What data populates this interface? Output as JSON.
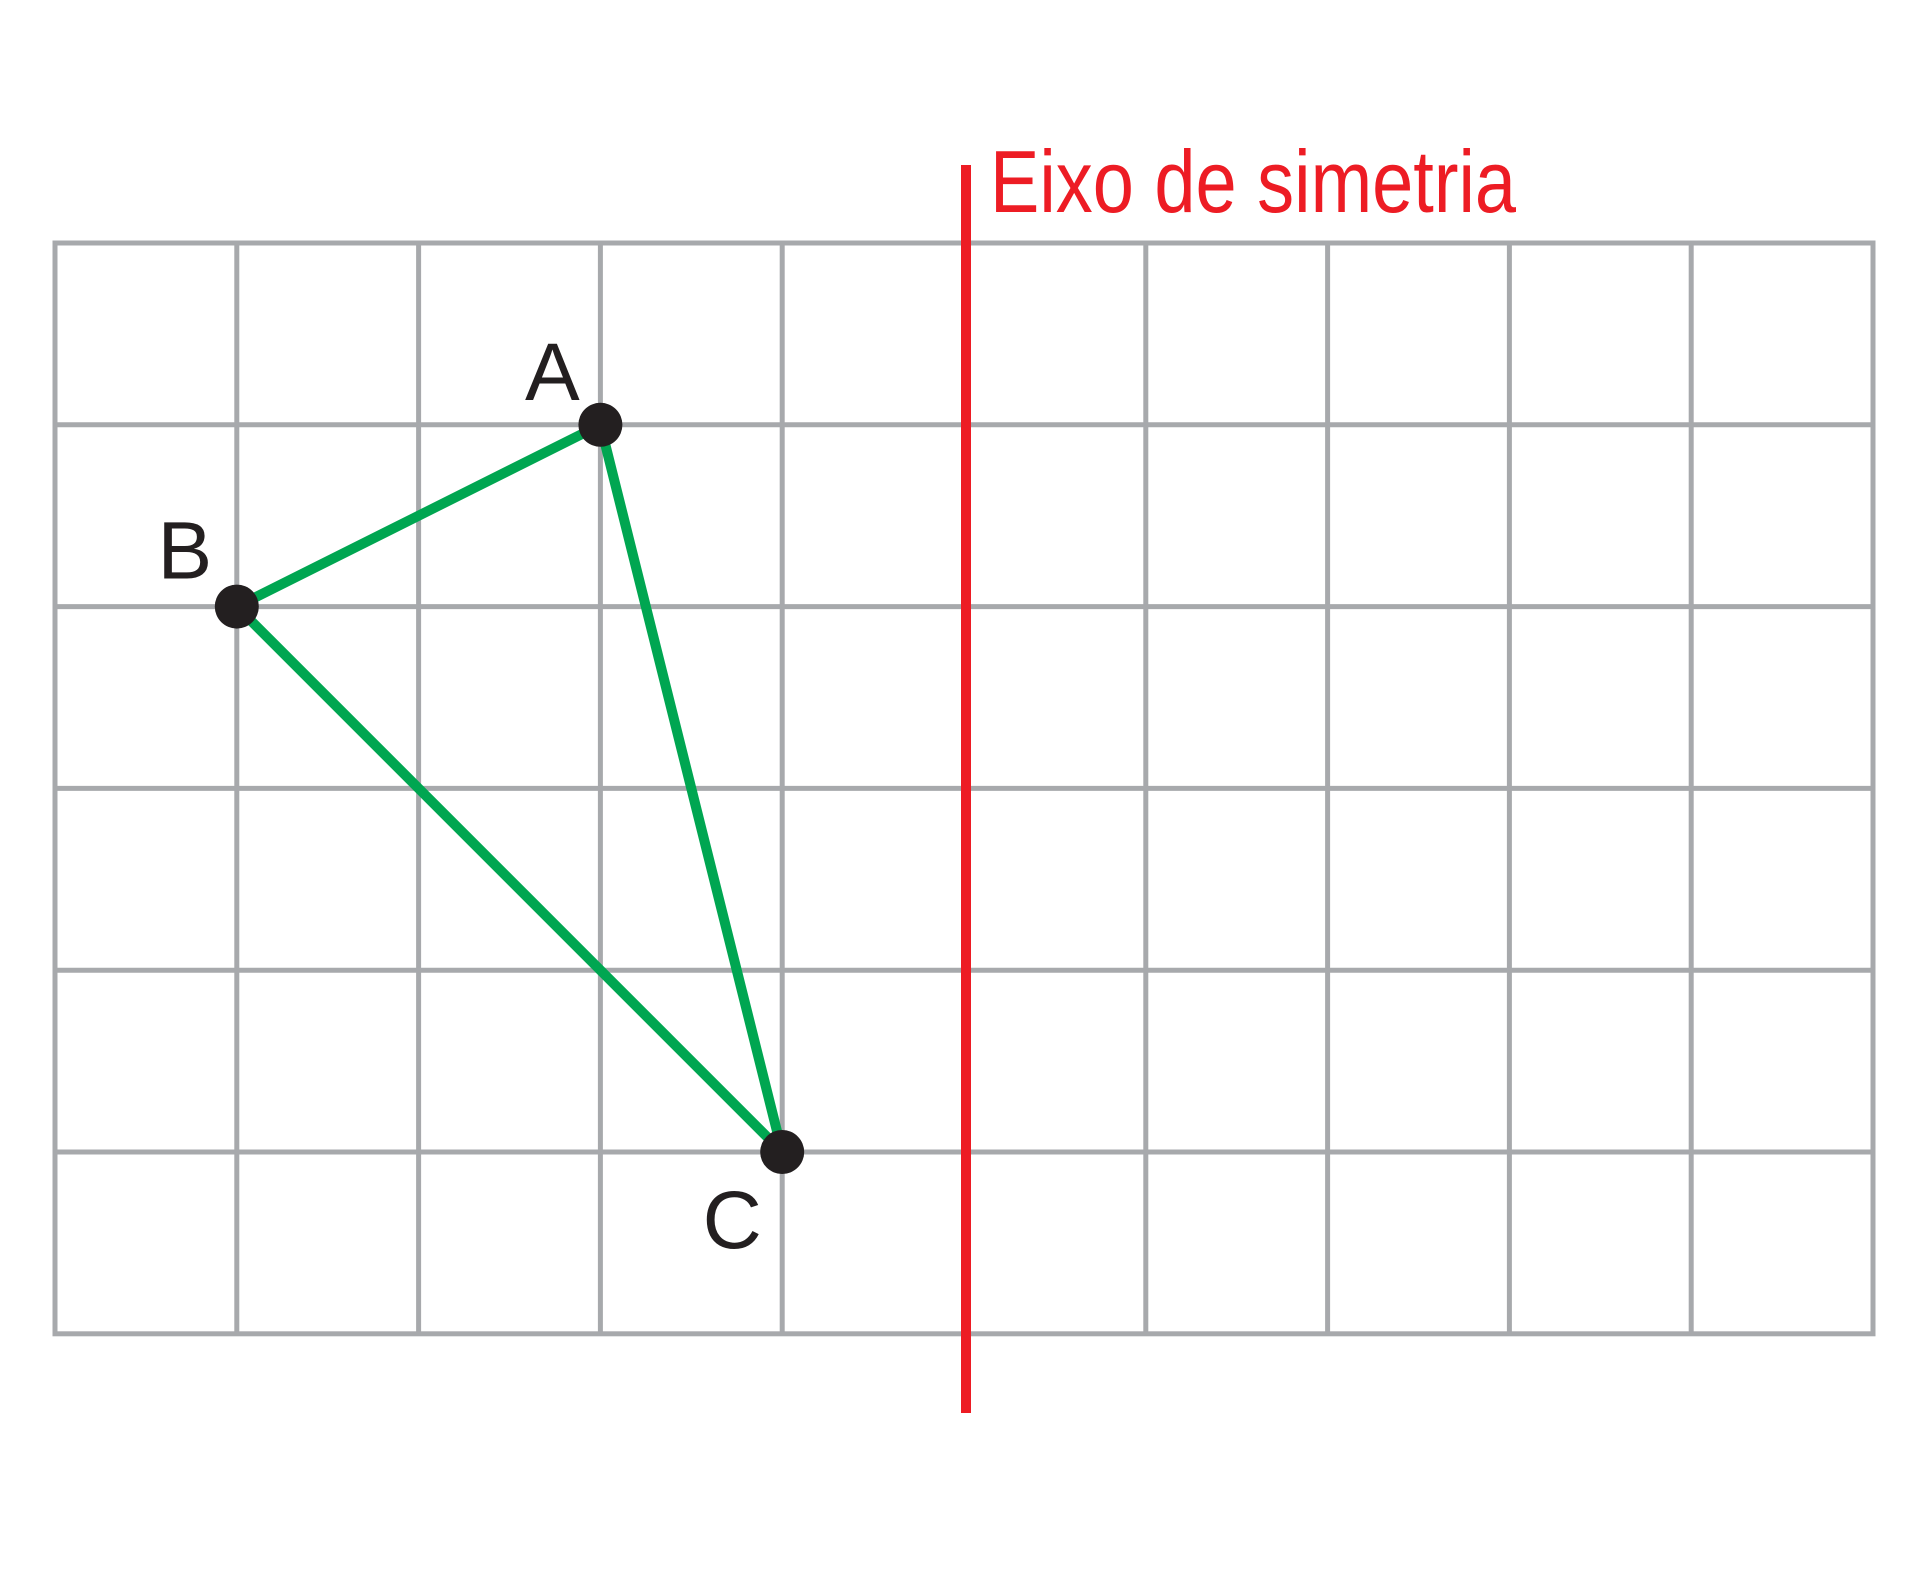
{
  "grid": {
    "columns": 10,
    "rows": 6,
    "line_color": "#a7a9ac"
  },
  "axis_of_symmetry": {
    "label": "Eixo de simetria",
    "color": "#ed1c24",
    "grid_x": 5
  },
  "triangle": {
    "edge_color": "#00a651",
    "vertex_color": "#231f20",
    "vertices": [
      {
        "name": "A",
        "grid_x": 3,
        "grid_y": 1
      },
      {
        "name": "B",
        "grid_x": 1,
        "grid_y": 2
      },
      {
        "name": "C",
        "grid_x": 4,
        "grid_y": 5
      }
    ],
    "edges": [
      [
        "A",
        "B"
      ],
      [
        "B",
        "C"
      ],
      [
        "C",
        "A"
      ]
    ]
  }
}
